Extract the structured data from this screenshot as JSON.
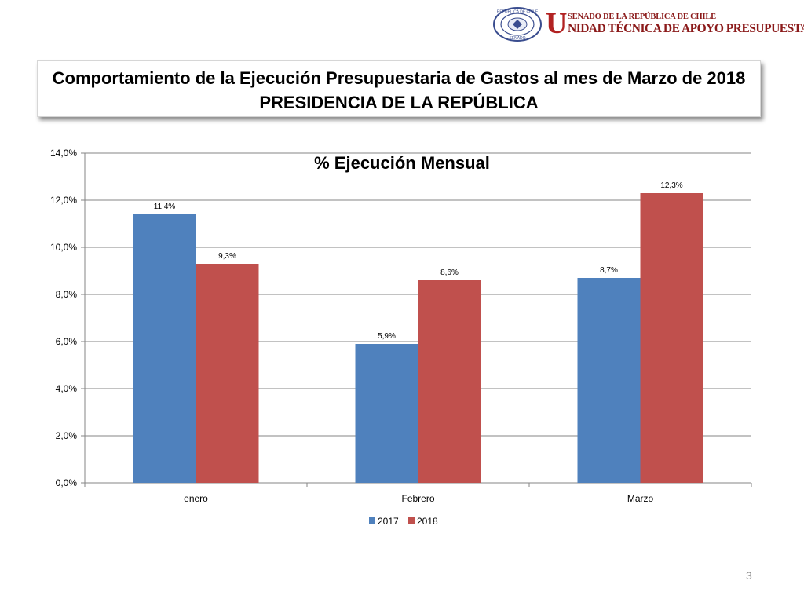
{
  "header": {
    "logo_u": "U",
    "logo_line1": "SENADO DE LA REPÚBLICA DE CHILE",
    "logo_line2": "NIDAD TÉCNICA DE APOYO PRESUPUESTARIO",
    "seal_top": "REPÚBLICA DE CHILE",
    "seal_bottom": "SENADO"
  },
  "slide": {
    "title_line1": "Comportamiento de la Ejecución Presupuestaria de Gastos al mes de Marzo de 2018",
    "title_line2": "PRESIDENCIA DE LA REPÚBLICA",
    "page_number": "3"
  },
  "chart_data": {
    "type": "bar",
    "title": "% Ejecución Mensual",
    "categories": [
      "enero",
      "Febrero",
      "Marzo"
    ],
    "series": [
      {
        "name": "2017",
        "color": "#4f81bd",
        "values": [
          11.4,
          5.9,
          8.7
        ],
        "labels": [
          "11,4%",
          "5,9%",
          "8,7%"
        ]
      },
      {
        "name": "2018",
        "color": "#c0504d",
        "values": [
          9.3,
          8.6,
          12.3
        ],
        "labels": [
          "9,3%",
          "8,6%",
          "12,3%"
        ]
      }
    ],
    "ylim": [
      0,
      14
    ],
    "yticks": [
      0,
      2,
      4,
      6,
      8,
      10,
      12,
      14
    ],
    "ytick_labels": [
      "0,0%",
      "2,0%",
      "4,0%",
      "6,0%",
      "8,0%",
      "10,0%",
      "12,0%",
      "14,0%"
    ],
    "xlabel": "",
    "ylabel": "",
    "grid": true,
    "legend_position": "bottom"
  }
}
